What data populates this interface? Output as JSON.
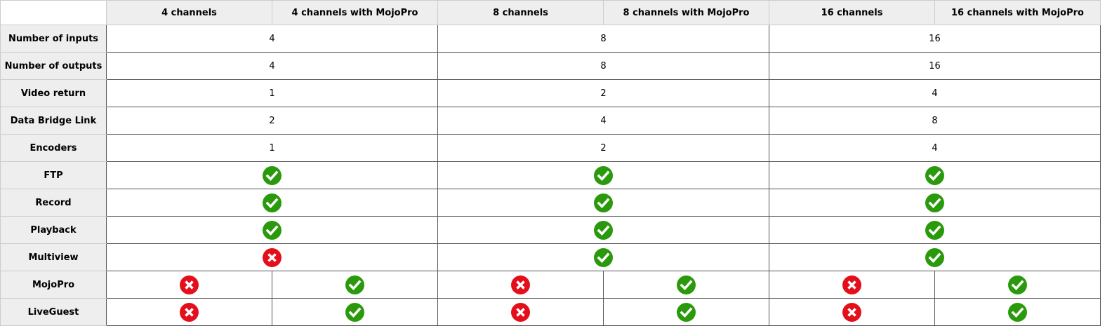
{
  "colors": {
    "check": "#2a9a0c",
    "cross": "#e3101c",
    "header_bg": "#eeeeee"
  },
  "columns": [
    "4 channels",
    "4 channels with MojoPro",
    "8 channels",
    "8 channels with MojoPro",
    "16 channels",
    "16 channels with MojoPro"
  ],
  "rows": [
    {
      "label": "Number of inputs",
      "cells": [
        {
          "v": "4",
          "span": 2
        },
        {
          "v": "8",
          "span": 2
        },
        {
          "v": "16",
          "span": 2
        }
      ]
    },
    {
      "label": "Number of outputs",
      "cells": [
        {
          "v": "4",
          "span": 2
        },
        {
          "v": "8",
          "span": 2
        },
        {
          "v": "16",
          "span": 2
        }
      ]
    },
    {
      "label": "Video return",
      "cells": [
        {
          "v": "1",
          "span": 2
        },
        {
          "v": "2",
          "span": 2
        },
        {
          "v": "4",
          "span": 2
        }
      ]
    },
    {
      "label": "Data Bridge Link",
      "cells": [
        {
          "v": "2",
          "span": 2
        },
        {
          "v": "4",
          "span": 2
        },
        {
          "v": "8",
          "span": 2
        }
      ]
    },
    {
      "label": "Encoders",
      "cells": [
        {
          "v": "1",
          "span": 2
        },
        {
          "v": "2",
          "span": 2
        },
        {
          "v": "4",
          "span": 2
        }
      ]
    },
    {
      "label": "FTP",
      "cells": [
        {
          "icon": "check",
          "span": 2
        },
        {
          "icon": "check",
          "span": 2
        },
        {
          "icon": "check",
          "span": 2
        }
      ]
    },
    {
      "label": "Record",
      "cells": [
        {
          "icon": "check",
          "span": 2
        },
        {
          "icon": "check",
          "span": 2
        },
        {
          "icon": "check",
          "span": 2
        }
      ]
    },
    {
      "label": "Playback",
      "cells": [
        {
          "icon": "check",
          "span": 2
        },
        {
          "icon": "check",
          "span": 2
        },
        {
          "icon": "check",
          "span": 2
        }
      ]
    },
    {
      "label": "Multiview",
      "cells": [
        {
          "icon": "cross",
          "span": 2
        },
        {
          "icon": "check",
          "span": 2
        },
        {
          "icon": "check",
          "span": 2
        }
      ]
    },
    {
      "label": "MojoPro",
      "cells": [
        {
          "icon": "cross",
          "span": 1
        },
        {
          "icon": "check",
          "span": 1
        },
        {
          "icon": "cross",
          "span": 1
        },
        {
          "icon": "check",
          "span": 1
        },
        {
          "icon": "cross",
          "span": 1
        },
        {
          "icon": "check",
          "span": 1
        }
      ]
    },
    {
      "label": "LiveGuest",
      "cells": [
        {
          "icon": "cross",
          "span": 1
        },
        {
          "icon": "check",
          "span": 1
        },
        {
          "icon": "cross",
          "span": 1
        },
        {
          "icon": "check",
          "span": 1
        },
        {
          "icon": "cross",
          "span": 1
        },
        {
          "icon": "check",
          "span": 1
        }
      ]
    }
  ]
}
